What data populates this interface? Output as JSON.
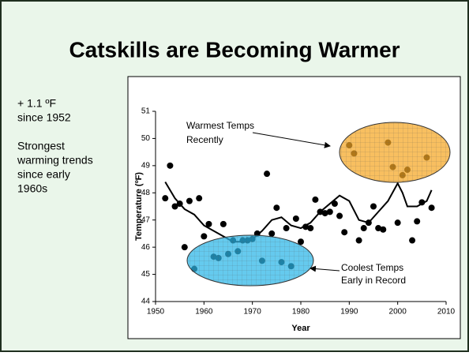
{
  "slide_title": "Catskills are Becoming Warmer",
  "sidebar": [
    "+ 1.1 ºF",
    "since 1952",
    "Strongest",
    "warming trends",
    "since early",
    "1960s"
  ],
  "chart_data": {
    "type": "scatter",
    "xlabel": "Year",
    "ylabel": "Temperature (ºF)",
    "xlim": [
      1950,
      2010
    ],
    "xticks": [
      1950,
      1960,
      1970,
      1980,
      1990,
      2000,
      2010
    ],
    "ylim": [
      44,
      51
    ],
    "yticks": [
      44,
      45,
      46,
      47,
      48,
      49,
      50,
      51
    ],
    "color": "#000000",
    "x": [
      1952,
      1953,
      1954,
      1955,
      1956,
      1957,
      1958,
      1959,
      1960,
      1961,
      1962,
      1963,
      1964,
      1965,
      1966,
      1967,
      1968,
      1969,
      1970,
      1971,
      1972,
      1973,
      1974,
      1975,
      1976,
      1977,
      1978,
      1979,
      1980,
      1981,
      1982,
      1983,
      1984,
      1985,
      1986,
      1987,
      1988,
      1989,
      1990,
      1991,
      1992,
      1993,
      1994,
      1995,
      1996,
      1997,
      1998,
      1999,
      2000,
      2001,
      2002,
      2003,
      2004,
      2005,
      2006,
      2007
    ],
    "values": [
      47.8,
      49.0,
      47.5,
      47.6,
      46.0,
      47.7,
      45.2,
      47.8,
      46.4,
      46.85,
      45.65,
      45.6,
      46.85,
      45.75,
      46.25,
      45.85,
      46.25,
      46.25,
      46.3,
      46.5,
      45.5,
      48.7,
      46.5,
      47.45,
      45.45,
      46.7,
      45.3,
      47.05,
      46.2,
      46.75,
      46.7,
      47.75,
      47.3,
      47.25,
      47.3,
      47.6,
      47.15,
      46.55,
      49.75,
      49.45,
      46.25,
      46.7,
      46.9,
      47.5,
      46.7,
      46.65,
      49.85,
      48.95,
      46.9,
      48.65,
      48.85,
      46.25,
      46.95,
      47.65,
      49.3,
      47.45
    ],
    "trend": {
      "color": "#000000",
      "x": [
        1952,
        1954,
        1956,
        1958,
        1960,
        1962,
        1964,
        1966,
        1968,
        1970,
        1972,
        1974,
        1976,
        1978,
        1980,
        1982,
        1984,
        1986,
        1988,
        1990,
        1992,
        1994,
        1996,
        1998,
        2000,
        2001,
        2002,
        2004,
        2006,
        2007
      ],
      "values": [
        48.4,
        47.8,
        47.4,
        47.2,
        46.8,
        46.6,
        46.4,
        46.2,
        46.2,
        46.3,
        46.6,
        47.0,
        47.1,
        46.8,
        46.7,
        46.9,
        47.3,
        47.6,
        47.9,
        47.7,
        47.0,
        46.9,
        47.3,
        47.7,
        48.35,
        48.0,
        47.5,
        47.5,
        47.7,
        48.1
      ]
    },
    "annotations": [
      [
        "Warmest Temps",
        "Recently"
      ],
      [
        "Coolest Temps",
        "Early in Record"
      ]
    ]
  }
}
